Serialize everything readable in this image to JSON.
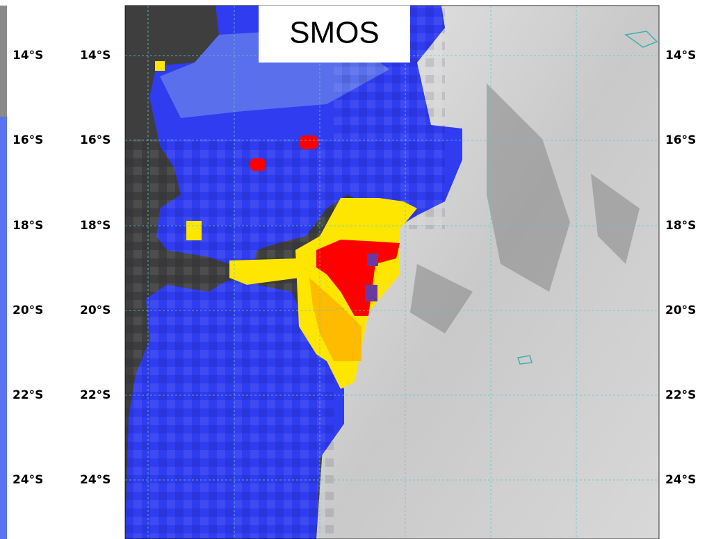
{
  "title": "SMOS",
  "left_panel": {
    "lat_labels": [
      "14°S",
      "16°S",
      "18°S",
      "20°S",
      "22°S",
      "24°S"
    ]
  },
  "map": {
    "lat_labels_left": [
      "14°S",
      "16°S",
      "18°S",
      "20°S",
      "22°S",
      "24°S"
    ],
    "lat_labels_right": [
      "14°S",
      "16°S",
      "18°S",
      "20°S",
      "22°S",
      "24°S"
    ]
  }
}
